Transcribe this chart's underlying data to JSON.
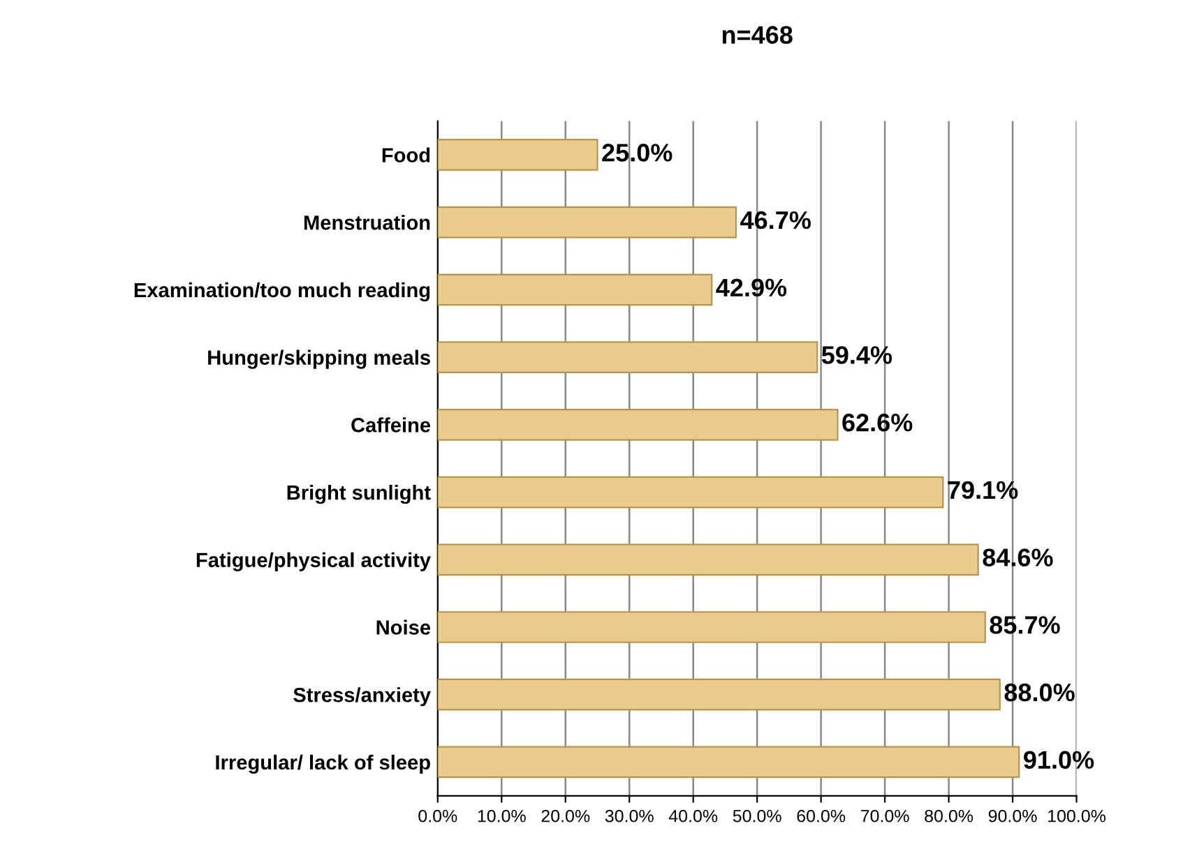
{
  "chart_data": {
    "type": "bar",
    "orientation": "horizontal",
    "title": "n=468",
    "categories": [
      "Food",
      "Menstruation",
      "Examination/too much reading",
      "Hunger/skipping meals",
      "Caffeine",
      "Bright sunlight",
      "Fatigue/physical activity",
      "Noise",
      "Stress/anxiety",
      "Irregular/ lack of sleep"
    ],
    "values": [
      25.0,
      46.7,
      42.9,
      59.4,
      62.6,
      79.1,
      84.6,
      85.7,
      88.0,
      91.0
    ],
    "value_labels": [
      "25.0%",
      "46.7%",
      "42.9%",
      "59.4%",
      "62.6%",
      "79.1%",
      "84.6%",
      "85.7%",
      "88.0%",
      "91.0%"
    ],
    "color": "#e9cc8c",
    "xlim": [
      0,
      100
    ],
    "xticks": [
      {
        "value": 0,
        "label": "0.0%"
      },
      {
        "value": 10,
        "label": "10.0%"
      },
      {
        "value": 20,
        "label": "20.0%"
      },
      {
        "value": 30,
        "label": "30.0%"
      },
      {
        "value": 40,
        "label": "40.0%"
      },
      {
        "value": 50,
        "label": "50.0%"
      },
      {
        "value": 60,
        "label": "60.0%"
      },
      {
        "value": 70,
        "label": "70.0%"
      },
      {
        "value": 80,
        "label": "80.0%"
      },
      {
        "value": 90,
        "label": "90.0%"
      },
      {
        "value": 100,
        "label": "100.0%"
      }
    ],
    "grid": "x",
    "legend": false
  }
}
